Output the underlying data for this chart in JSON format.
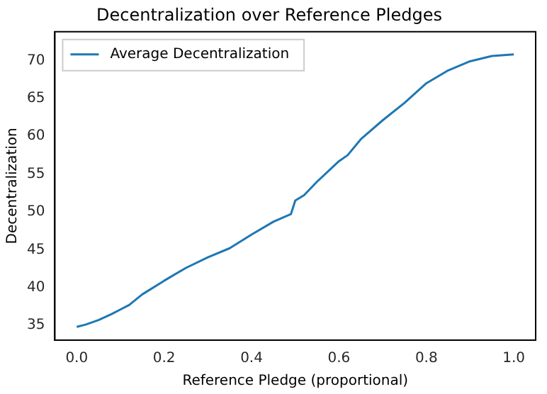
{
  "chart_data": {
    "type": "line",
    "title": "Decentralization over Reference Pledges",
    "xlabel": "Reference Pledge (proportional)",
    "ylabel": "Decentralization",
    "x": [
      0,
      0.02,
      0.05,
      0.08,
      0.1,
      0.12,
      0.15,
      0.2,
      0.25,
      0.3,
      0.35,
      0.4,
      0.45,
      0.49,
      0.5,
      0.52,
      0.55,
      0.6,
      0.62,
      0.65,
      0.7,
      0.75,
      0.8,
      0.85,
      0.9,
      0.95,
      1.0
    ],
    "series": [
      {
        "name": "Average Decentralization",
        "color": "#1f77b4",
        "values": [
          34.8,
          35.1,
          35.7,
          36.5,
          37.1,
          37.7,
          39.1,
          40.9,
          42.6,
          44.0,
          45.2,
          47.0,
          48.7,
          49.7,
          51.5,
          52.2,
          54.0,
          56.7,
          57.5,
          59.6,
          62.1,
          64.4,
          67.0,
          68.7,
          69.9,
          70.6,
          70.8
        ]
      }
    ],
    "xlim": [
      -0.05,
      1.05
    ],
    "ylim": [
      33.05,
      73.8
    ],
    "xticks": [
      {
        "value": 0,
        "label": "0.0"
      },
      0.2,
      0.4,
      0.6,
      0.8,
      {
        "value": 1,
        "label": "1.0"
      }
    ],
    "yticks": [
      35,
      40,
      45,
      50,
      55,
      60,
      65,
      70
    ],
    "grid": false,
    "legend": "top left",
    "marker": "none",
    "line_style": "solid"
  }
}
